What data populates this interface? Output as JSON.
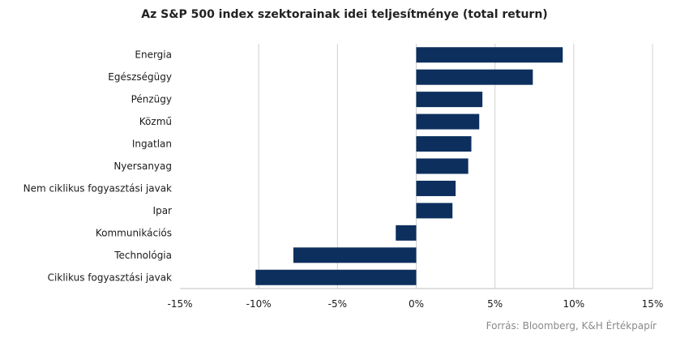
{
  "chart_data": {
    "type": "bar",
    "orientation": "horizontal",
    "title": "Az S&P 500 index szektorainak idei teljesítménye (total return)",
    "categories": [
      "Energia",
      "Egészségügy",
      "Pénzügy",
      "Közmű",
      "Ingatlan",
      "Nyersanyag",
      "Nem ciklikus fogyasztási javak",
      "Ipar",
      "Kommunikációs",
      "Technológia",
      "Ciklikus fogyasztási javak"
    ],
    "values": [
      9.3,
      7.4,
      4.2,
      4.0,
      3.5,
      3.3,
      2.5,
      2.3,
      -1.3,
      -7.8,
      -10.2
    ],
    "xlim": [
      -15,
      15
    ],
    "xticks": [
      -15,
      -10,
      -5,
      0,
      5,
      10,
      15
    ],
    "xtick_labels": [
      "-15%",
      "-10%",
      "-5%",
      "0%",
      "5%",
      "10%",
      "15%"
    ],
    "bar_color": "#0c2f5e",
    "grid": true
  },
  "source": "Forrás: Bloomberg, K&H Értékpapír"
}
